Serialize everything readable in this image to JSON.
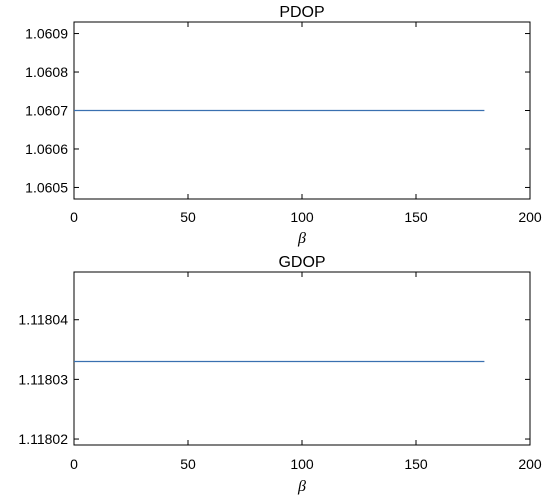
{
  "chart_data": [
    {
      "type": "line",
      "title": "PDOP",
      "xlabel": "β",
      "ylabel": "",
      "xlim": [
        0,
        200
      ],
      "ylim": [
        1.06047,
        1.06093
      ],
      "xticks": [
        0,
        50,
        100,
        150,
        200
      ],
      "xtick_labels": [
        "0",
        "50",
        "100",
        "150",
        "200"
      ],
      "yticks": [
        1.0605,
        1.0606,
        1.0607,
        1.0608,
        1.0609
      ],
      "ytick_labels": [
        "1.0605",
        "1.0606",
        "1.0607",
        "1.0608",
        "1.0609"
      ],
      "grid": false,
      "series": [
        {
          "x": [
            0,
            45,
            90,
            135,
            180
          ],
          "y": [
            1.0607,
            1.0607,
            1.0607,
            1.0607,
            1.0607
          ]
        }
      ],
      "colors": {
        "line": "#3a70b0"
      }
    },
    {
      "type": "line",
      "title": "GDOP",
      "xlabel": "β",
      "ylabel": "",
      "xlim": [
        0,
        200
      ],
      "ylim": [
        1.118019,
        1.118048
      ],
      "xticks": [
        0,
        50,
        100,
        150,
        200
      ],
      "xtick_labels": [
        "0",
        "50",
        "100",
        "150",
        "200"
      ],
      "yticks": [
        1.11802,
        1.11803,
        1.11804
      ],
      "ytick_labels": [
        "1.11802",
        "1.11803",
        "1.11804"
      ],
      "grid": false,
      "series": [
        {
          "x": [
            0,
            45,
            90,
            135,
            180
          ],
          "y": [
            1.118033,
            1.118033,
            1.118033,
            1.118033,
            1.118033
          ]
        }
      ],
      "colors": {
        "line": "#3a70b0"
      }
    }
  ]
}
